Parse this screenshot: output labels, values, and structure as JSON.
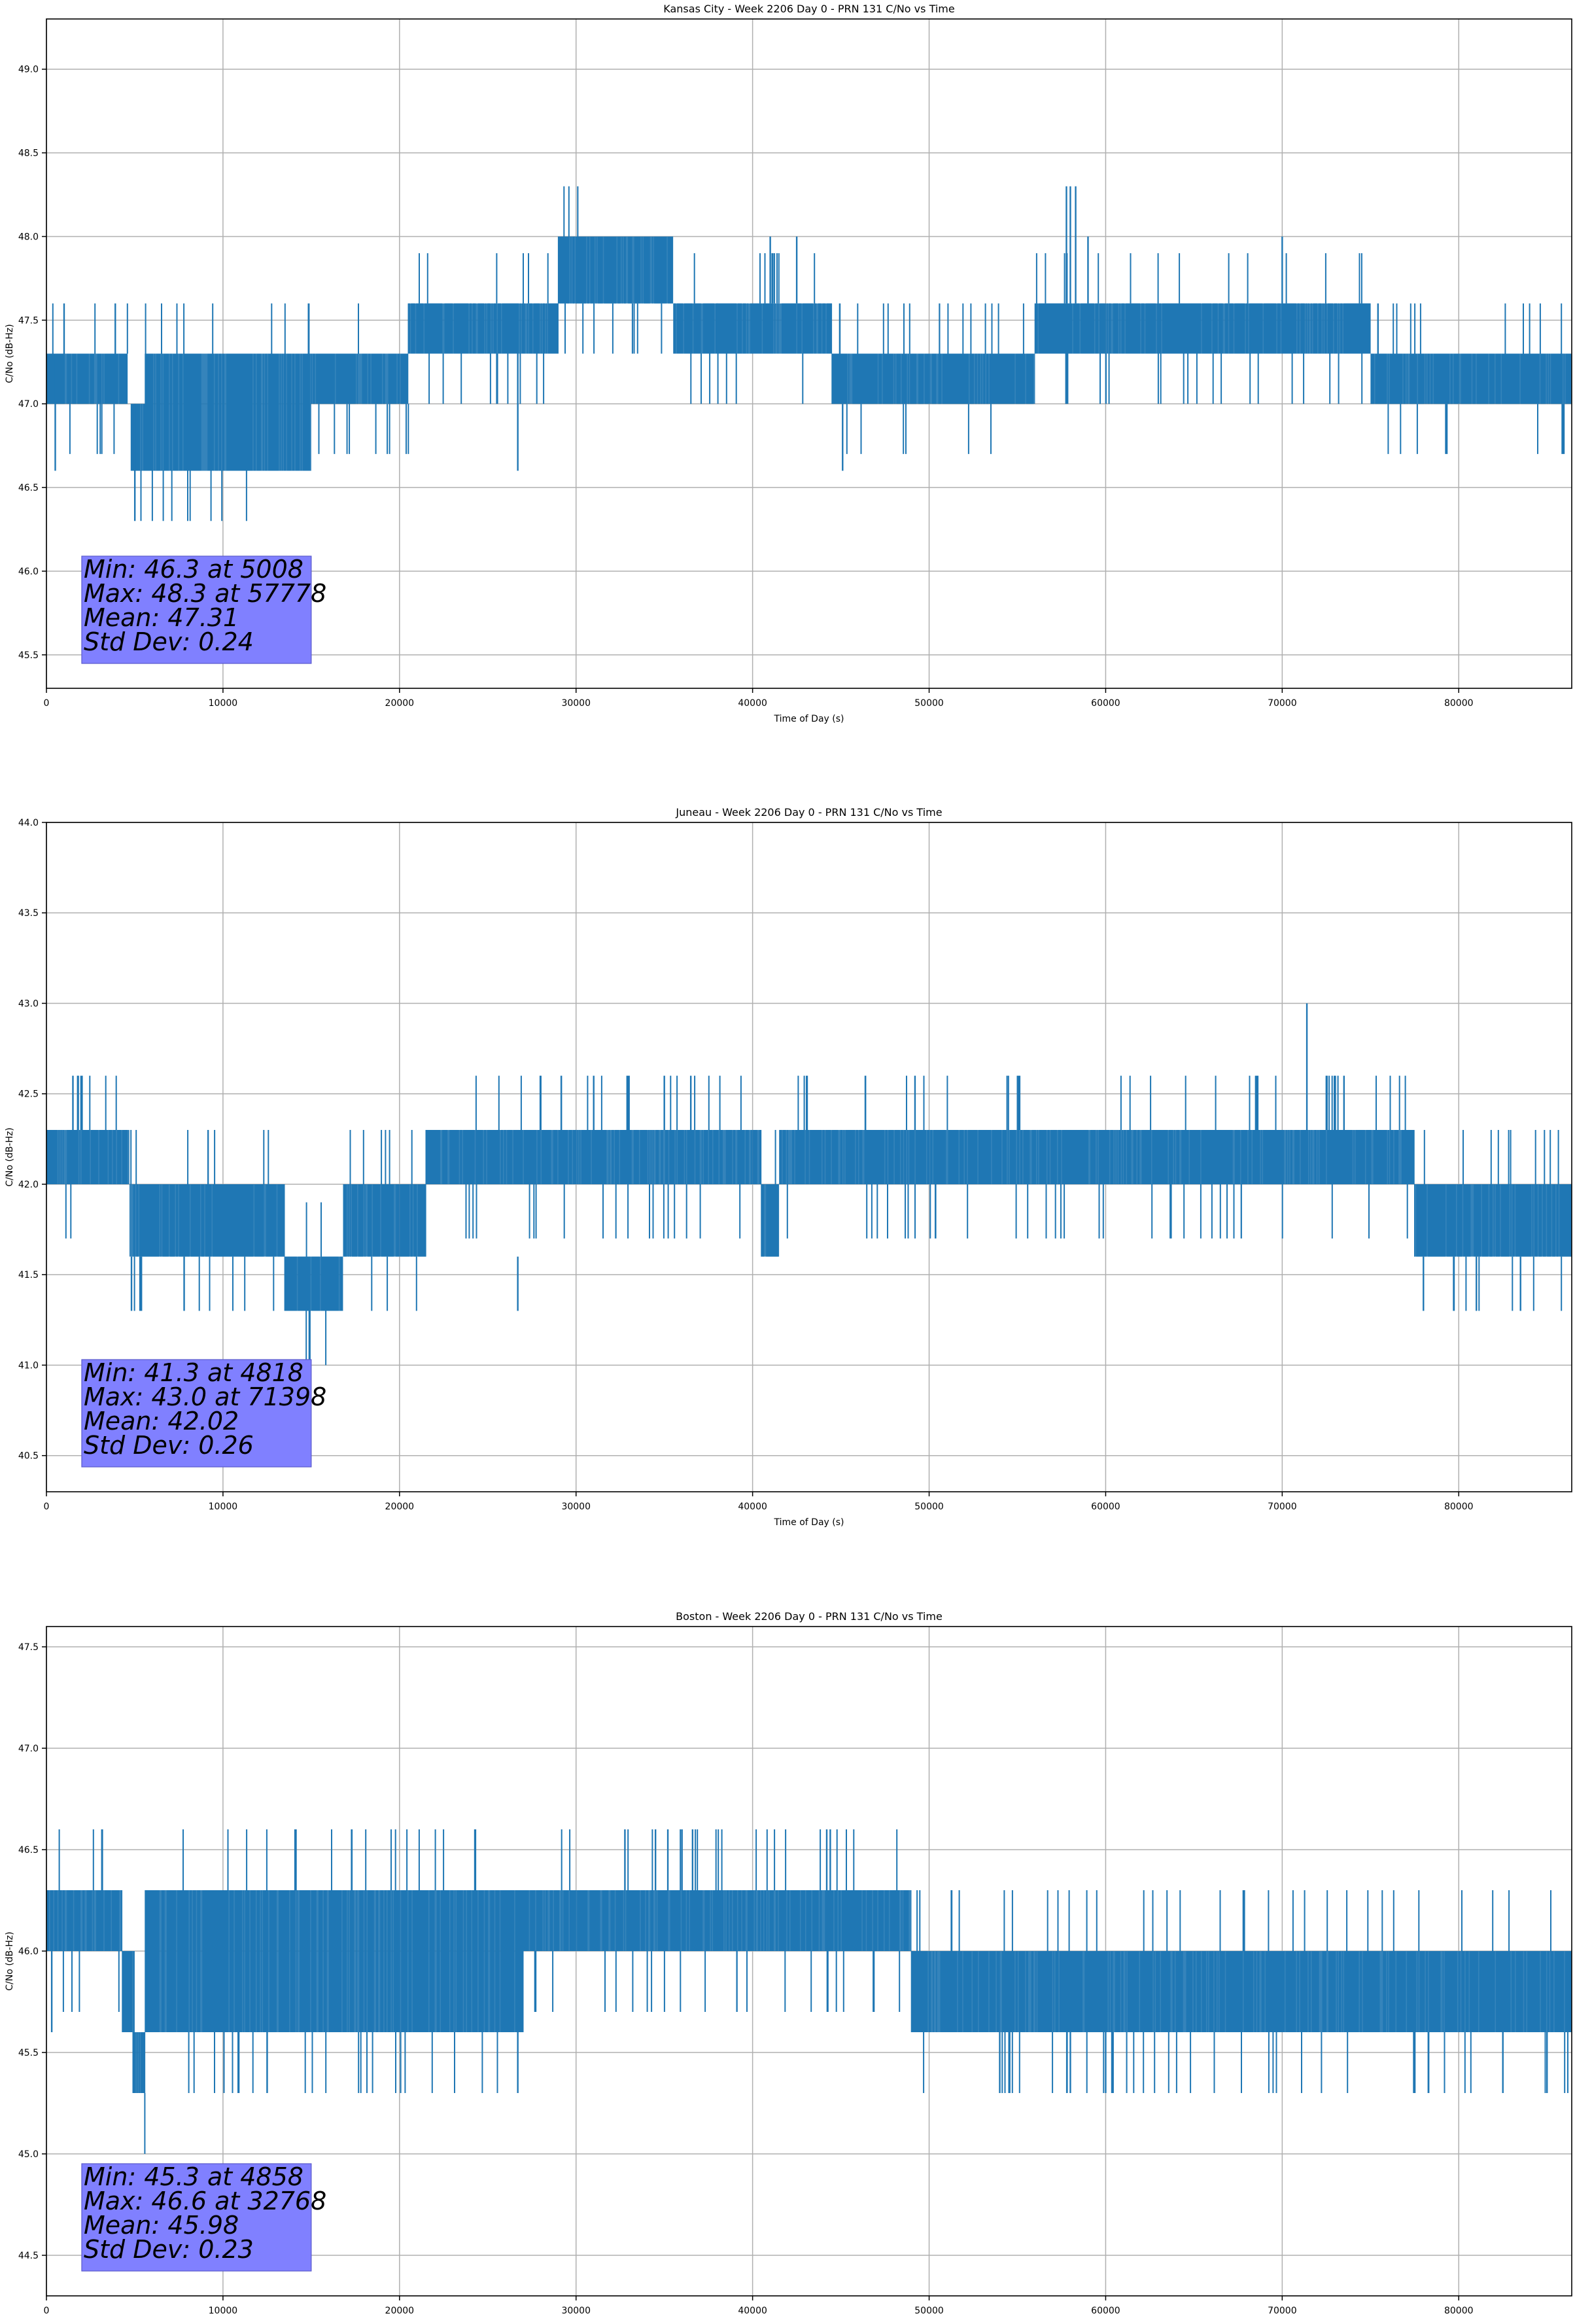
{
  "chart_data": [
    {
      "type": "line",
      "title": "Kansas City - Week 2206 Day 0 - PRN 131 C/No vs Time",
      "xlabel": "Time of Day (s)",
      "ylabel": "C/No (dB-Hz)",
      "xlim": [
        0,
        86400
      ],
      "ylim": [
        45.3,
        49.3
      ],
      "xticks": [
        0,
        10000,
        20000,
        30000,
        40000,
        50000,
        60000,
        70000,
        80000
      ],
      "xtick_labels": [
        "0",
        "10000",
        "20000",
        "30000",
        "40000",
        "50000",
        "60000",
        "70000",
        "80000"
      ],
      "yticks": [
        45.5,
        46.0,
        46.5,
        47.0,
        47.5,
        48.0,
        48.5,
        49.0
      ],
      "ytick_labels": [
        "45.5",
        "46.0",
        "46.5",
        "47.0",
        "47.5",
        "48.0",
        "48.5",
        "49.0"
      ],
      "grid": true,
      "color": "#1f77b4",
      "series": [
        {
          "name": "C/No",
          "segments": [
            {
              "x0": 0,
              "x1": 4600,
              "lo": 47.0,
              "hi": 47.3
            },
            {
              "x0": 4800,
              "x1": 5600,
              "lo": 46.6,
              "hi": 47.0
            },
            {
              "x0": 5600,
              "x1": 15000,
              "lo": 46.6,
              "hi": 47.3
            },
            {
              "x0": 15000,
              "x1": 20500,
              "lo": 47.0,
              "hi": 47.3
            },
            {
              "x0": 20500,
              "x1": 29000,
              "lo": 47.3,
              "hi": 47.6
            },
            {
              "x0": 29000,
              "x1": 35500,
              "lo": 47.6,
              "hi": 48.0
            },
            {
              "x0": 35500,
              "x1": 38000,
              "lo": 47.3,
              "hi": 47.6
            },
            {
              "x0": 38000,
              "x1": 44500,
              "lo": 47.3,
              "hi": 47.6
            },
            {
              "x0": 44500,
              "x1": 56000,
              "lo": 47.0,
              "hi": 47.3
            },
            {
              "x0": 56000,
              "x1": 70000,
              "lo": 47.3,
              "hi": 47.6
            },
            {
              "x0": 70000,
              "x1": 75000,
              "lo": 47.3,
              "hi": 47.6
            },
            {
              "x0": 75000,
              "x1": 86400,
              "lo": 47.0,
              "hi": 47.3
            }
          ],
          "spikes": [
            {
              "x": 500,
              "lo": 46.6,
              "hi": 47.3
            },
            {
              "x": 1000,
              "lo": 47.3,
              "hi": 47.6
            },
            {
              "x": 3900,
              "lo": 47.3,
              "hi": 47.6
            },
            {
              "x": 5008,
              "lo": 46.3,
              "hi": 47.0
            },
            {
              "x": 26700,
              "lo": 46.6,
              "hi": 47.3
            },
            {
              "x": 41000,
              "lo": 47.6,
              "hi": 48.0
            },
            {
              "x": 42500,
              "lo": 47.6,
              "hi": 48.0
            },
            {
              "x": 45100,
              "lo": 46.6,
              "hi": 47.0
            },
            {
              "x": 57778,
              "lo": 47.6,
              "hi": 48.3
            },
            {
              "x": 58000,
              "lo": 47.6,
              "hi": 48.3
            },
            {
              "x": 58300,
              "lo": 47.6,
              "hi": 48.3
            },
            {
              "x": 59000,
              "lo": 47.6,
              "hi": 48.0
            },
            {
              "x": 70000,
              "lo": 47.6,
              "hi": 48.0
            }
          ]
        }
      ],
      "stats": {
        "lines": [
          "Min: 46.3 at 5008",
          "Max: 48.3 at 57778",
          "Mean: 47.31",
          "Std Dev: 0.24"
        ],
        "min": 46.3,
        "min_t": 5008,
        "max": 48.3,
        "max_t": 57778,
        "mean": 47.31,
        "std": 0.24,
        "box_color": "#8080ff"
      }
    },
    {
      "type": "line",
      "title": "Juneau - Week 2206 Day 0 - PRN 131 C/No vs Time",
      "xlabel": "Time of Day (s)",
      "ylabel": "C/No (dB-Hz)",
      "xlim": [
        0,
        86400
      ],
      "ylim": [
        40.3,
        44.0
      ],
      "xticks": [
        0,
        10000,
        20000,
        30000,
        40000,
        50000,
        60000,
        70000,
        80000
      ],
      "xtick_labels": [
        "0",
        "10000",
        "20000",
        "30000",
        "40000",
        "50000",
        "60000",
        "70000",
        "80000"
      ],
      "yticks": [
        40.5,
        41.0,
        41.5,
        42.0,
        42.5,
        43.0,
        43.5,
        44.0
      ],
      "ytick_labels": [
        "40.5",
        "41.0",
        "41.5",
        "42.0",
        "42.5",
        "43.0",
        "43.5",
        "44.0"
      ],
      "grid": true,
      "color": "#1f77b4",
      "series": [
        {
          "name": "C/No",
          "segments": [
            {
              "x0": 0,
              "x1": 4700,
              "lo": 42.0,
              "hi": 42.3
            },
            {
              "x0": 4700,
              "x1": 13500,
              "lo": 41.6,
              "hi": 42.0
            },
            {
              "x0": 13500,
              "x1": 16800,
              "lo": 41.3,
              "hi": 41.6
            },
            {
              "x0": 16800,
              "x1": 21500,
              "lo": 41.6,
              "hi": 42.0
            },
            {
              "x0": 21500,
              "x1": 40500,
              "lo": 42.0,
              "hi": 42.3
            },
            {
              "x0": 40500,
              "x1": 41500,
              "lo": 41.6,
              "hi": 42.0
            },
            {
              "x0": 41500,
              "x1": 73000,
              "lo": 42.0,
              "hi": 42.3
            },
            {
              "x0": 73000,
              "x1": 77500,
              "lo": 42.0,
              "hi": 42.3
            },
            {
              "x0": 77500,
              "x1": 86400,
              "lo": 41.6,
              "hi": 42.0
            }
          ],
          "spikes": [
            {
              "x": 1500,
              "lo": 42.3,
              "hi": 42.6
            },
            {
              "x": 1800,
              "lo": 42.3,
              "hi": 42.6
            },
            {
              "x": 4818,
              "lo": 41.3,
              "hi": 41.6
            },
            {
              "x": 5300,
              "lo": 41.3,
              "hi": 41.6
            },
            {
              "x": 7800,
              "lo": 41.3,
              "hi": 41.6
            },
            {
              "x": 26700,
              "lo": 41.3,
              "hi": 41.6
            },
            {
              "x": 28000,
              "lo": 42.3,
              "hi": 42.6
            },
            {
              "x": 31000,
              "lo": 42.3,
              "hi": 42.6
            },
            {
              "x": 33000,
              "lo": 42.3,
              "hi": 42.6
            },
            {
              "x": 35000,
              "lo": 42.3,
              "hi": 42.6
            },
            {
              "x": 36500,
              "lo": 42.3,
              "hi": 42.6
            },
            {
              "x": 49200,
              "lo": 42.3,
              "hi": 42.6
            },
            {
              "x": 68500,
              "lo": 42.3,
              "hi": 42.6
            },
            {
              "x": 71398,
              "lo": 42.3,
              "hi": 43.0
            },
            {
              "x": 72500,
              "lo": 42.3,
              "hi": 42.6
            },
            {
              "x": 73500,
              "lo": 42.3,
              "hi": 42.6
            },
            {
              "x": 78000,
              "lo": 41.3,
              "hi": 41.6
            },
            {
              "x": 81000,
              "lo": 41.3,
              "hi": 41.6
            },
            {
              "x": 83500,
              "lo": 41.3,
              "hi": 41.6
            }
          ]
        }
      ],
      "stats": {
        "lines": [
          "Min: 41.3 at 4818",
          "Max: 43.0 at 71398",
          "Mean: 42.02",
          "Std Dev: 0.26"
        ],
        "min": 41.3,
        "min_t": 4818,
        "max": 43.0,
        "max_t": 71398,
        "mean": 42.02,
        "std": 0.26,
        "box_color": "#8080ff"
      }
    },
    {
      "type": "line",
      "title": "Boston - Week 2206 Day 0 - PRN 131 C/No vs Time",
      "xlabel": "Time of Day (s)",
      "ylabel": "C/No (dB-Hz)",
      "xlim": [
        0,
        86400
      ],
      "ylim": [
        44.3,
        47.6
      ],
      "xticks": [
        0,
        10000,
        20000,
        30000,
        40000,
        50000,
        60000,
        70000,
        80000
      ],
      "xtick_labels": [
        "0",
        "10000",
        "20000",
        "30000",
        "40000",
        "50000",
        "60000",
        "70000",
        "80000"
      ],
      "yticks": [
        44.5,
        45.0,
        45.5,
        46.0,
        46.5,
        47.0,
        47.5
      ],
      "ytick_labels": [
        "44.5",
        "45.0",
        "45.5",
        "46.0",
        "46.5",
        "47.0",
        "47.5"
      ],
      "grid": true,
      "color": "#1f77b4",
      "series": [
        {
          "name": "C/No",
          "segments": [
            {
              "x0": 0,
              "x1": 4300,
              "lo": 46.0,
              "hi": 46.3
            },
            {
              "x0": 4300,
              "x1": 5000,
              "lo": 45.6,
              "hi": 46.0
            },
            {
              "x0": 4900,
              "x1": 5600,
              "lo": 45.3,
              "hi": 45.6
            },
            {
              "x0": 5600,
              "x1": 27000,
              "lo": 45.6,
              "hi": 46.3
            },
            {
              "x0": 27000,
              "x1": 49000,
              "lo": 46.0,
              "hi": 46.3
            },
            {
              "x0": 49000,
              "x1": 86400,
              "lo": 45.6,
              "hi": 46.0
            }
          ],
          "spikes": [
            {
              "x": 300,
              "lo": 45.6,
              "hi": 46.0
            },
            {
              "x": 12500,
              "lo": 45.3,
              "hi": 45.6
            },
            {
              "x": 26700,
              "lo": 45.3,
              "hi": 45.6
            },
            {
              "x": 32768,
              "lo": 46.3,
              "hi": 46.6
            },
            {
              "x": 34500,
              "lo": 46.3,
              "hi": 46.6
            },
            {
              "x": 35200,
              "lo": 46.3,
              "hi": 46.6
            },
            {
              "x": 36000,
              "lo": 46.3,
              "hi": 46.6
            },
            {
              "x": 36600,
              "lo": 46.3,
              "hi": 46.6
            },
            {
              "x": 44200,
              "lo": 46.3,
              "hi": 46.6
            },
            {
              "x": 44400,
              "lo": 46.3,
              "hi": 46.6
            },
            {
              "x": 54000,
              "lo": 45.3,
              "hi": 45.6
            },
            {
              "x": 58000,
              "lo": 45.3,
              "hi": 45.6
            },
            {
              "x": 60000,
              "lo": 45.3,
              "hi": 45.6
            },
            {
              "x": 82500,
              "lo": 45.3,
              "hi": 45.6
            },
            {
              "x": 85000,
              "lo": 45.3,
              "hi": 45.6
            }
          ]
        }
      ],
      "stats": {
        "lines": [
          "Min: 45.3 at 4858",
          "Max: 46.6 at 32768",
          "Mean: 45.98",
          "Std Dev: 0.23"
        ],
        "min": 45.3,
        "min_t": 4858,
        "max": 46.6,
        "max_t": 32768,
        "mean": 45.98,
        "std": 0.23,
        "box_color": "#8080ff"
      }
    }
  ]
}
